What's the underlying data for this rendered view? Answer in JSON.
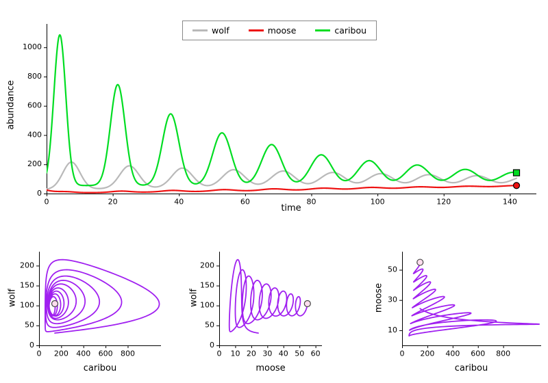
{
  "figure": {
    "background": "#ffffff"
  },
  "chart_data": [
    {
      "id": "abundance-timeseries",
      "type": "line",
      "title": "",
      "xlabel": "time",
      "ylabel": "abundance",
      "x_range": [
        0,
        148
      ],
      "y_range": [
        0,
        1160
      ],
      "x_ticks": [
        0,
        20,
        40,
        60,
        80,
        100,
        120,
        140
      ],
      "y_ticks": [
        0,
        200,
        400,
        600,
        800,
        1000
      ],
      "grid": false,
      "legend": {
        "position": "top-center",
        "border": true,
        "entries": [
          {
            "label": "wolf",
            "color": "#b9b9b9"
          },
          {
            "label": "moose",
            "color": "#ee1111"
          },
          {
            "label": "caribou",
            "color": "#00dd22"
          }
        ]
      },
      "t_start": 0,
      "t_end": 142,
      "dt": 0.1,
      "series": [
        {
          "name": "wolf",
          "color": "#b9b9b9",
          "line_width": 2.2,
          "base": {
            "from": 28,
            "to": 44,
            "t_end": 60,
            "power": 1
          },
          "pulses": {
            "times": [
              7.5,
              25,
              41,
              56.5,
              71.5,
              86.5,
              101,
              115.5,
              130,
              144.5
            ],
            "heights": [
              185,
              155,
              135,
              120,
              110,
              100,
              92,
              85,
              78,
              72
            ],
            "widths": [
              2.6,
              2.9,
              3.1,
              3.3,
              3.5,
              3.7,
              3.8,
              3.9,
              4.0,
              4.1
            ]
          }
        },
        {
          "name": "moose",
          "color": "#ee1111",
          "line_width": 2.2,
          "base": {
            "from": 4,
            "to": 46,
            "t_end": 142,
            "power": 1.3
          },
          "transient": {
            "amp": 20,
            "tau": 3
          },
          "pulses": {
            "times": [
              6,
              22.5,
              38,
              53.5,
              68.5,
              83.5,
              98,
              112.5,
              127,
              141.5
            ],
            "heights": [
              6,
              9,
              10,
              11,
              12,
              12,
              12,
              11,
              10,
              9
            ],
            "widths": [
              2.5,
              2.8,
              3.0,
              3.2,
              3.4,
              3.6,
              3.8,
              4.0,
              4.2,
              4.4
            ]
          }
        },
        {
          "name": "caribou",
          "color": "#00dd22",
          "line_width": 2.2,
          "base": {
            "from": 55,
            "to": 55,
            "t_end": 142,
            "power": 1
          },
          "pulses": {
            "times": [
              4,
              21.5,
              37.5,
              53,
              68,
              83,
              97.5,
              112,
              126.5,
              141
            ],
            "heights": [
              1030,
              690,
              490,
              360,
              280,
              210,
              170,
              140,
              110,
              90
            ],
            "widths": [
              1.8,
              2.2,
              2.5,
              2.8,
              3.0,
              3.2,
              3.4,
              3.6,
              3.8,
              4.0
            ]
          }
        }
      ],
      "end_markers": [
        {
          "series": "caribou",
          "shape": "square",
          "fill": "#00dd22",
          "stroke": "#000000",
          "size": 9
        },
        {
          "series": "moose",
          "shape": "circle",
          "fill": "#ee1111",
          "stroke": "#000000",
          "size": 9
        }
      ]
    },
    {
      "id": "phase-caribou-wolf",
      "type": "phase",
      "x_series": "caribou",
      "y_series": "wolf",
      "xlabel": "caribou",
      "ylabel": "wolf",
      "x_range": [
        0,
        1100
      ],
      "y_range": [
        0,
        235
      ],
      "x_ticks": [
        0,
        200,
        400,
        600,
        800
      ],
      "y_ticks": [
        0,
        50,
        100,
        150,
        200
      ],
      "color": "#a020f0",
      "line_width": 1.8,
      "end_marker": {
        "shape": "circle",
        "fill": "#ffddee",
        "stroke": "#444444",
        "size": 9
      }
    },
    {
      "id": "phase-moose-wolf",
      "type": "phase",
      "x_series": "moose",
      "y_series": "wolf",
      "xlabel": "moose",
      "ylabel": "wolf",
      "x_range": [
        0,
        64
      ],
      "y_range": [
        0,
        235
      ],
      "x_ticks": [
        0,
        10,
        20,
        30,
        40,
        50,
        60
      ],
      "y_ticks": [
        0,
        50,
        100,
        150,
        200
      ],
      "color": "#a020f0",
      "line_width": 1.8,
      "end_marker": {
        "shape": "circle",
        "fill": "#ffddee",
        "stroke": "#444444",
        "size": 9
      }
    },
    {
      "id": "phase-caribou-moose",
      "type": "phase",
      "x_series": "caribou",
      "y_series": "moose",
      "xlabel": "caribou",
      "ylabel": "moose",
      "x_range": [
        0,
        1100
      ],
      "y_range": [
        0,
        62
      ],
      "x_ticks": [
        0,
        200,
        400,
        600,
        800
      ],
      "y_ticks": [
        10,
        30,
        50
      ],
      "color": "#a020f0",
      "line_width": 1.8,
      "end_marker": {
        "shape": "circle",
        "fill": "#ffddee",
        "stroke": "#444444",
        "size": 9
      }
    }
  ]
}
